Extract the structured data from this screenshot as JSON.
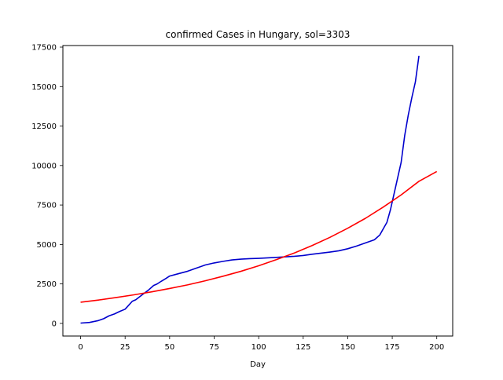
{
  "chart_data": {
    "type": "line",
    "title": "confirmed Cases in Hungary, sol=3303",
    "xlabel": "Day",
    "ylabel": "",
    "xlim": [
      -9.95,
      208.95
    ],
    "ylim": [
      -800,
      17600
    ],
    "x_ticks": [
      0,
      25,
      50,
      75,
      100,
      125,
      150,
      175,
      200
    ],
    "y_ticks": [
      0,
      2500,
      5000,
      7500,
      10000,
      12500,
      15000,
      17500
    ],
    "grid": false,
    "legend": "none",
    "series": [
      {
        "color": "#0000cd",
        "x": [
          0,
          5,
          10,
          13,
          16,
          19,
          22,
          25,
          27,
          29,
          31,
          35,
          38,
          41,
          43,
          45,
          48,
          50,
          55,
          60,
          65,
          70,
          75,
          80,
          85,
          90,
          95,
          100,
          110,
          120,
          125,
          130,
          135,
          140,
          145,
          150,
          155,
          160,
          165,
          168,
          170,
          172,
          174,
          176,
          178,
          180,
          182,
          184,
          186,
          188,
          190
        ],
        "y": [
          20,
          60,
          180,
          300,
          480,
          600,
          760,
          900,
          1150,
          1400,
          1500,
          1850,
          2100,
          2400,
          2500,
          2650,
          2850,
          3000,
          3150,
          3300,
          3500,
          3700,
          3830,
          3930,
          4020,
          4070,
          4100,
          4120,
          4180,
          4250,
          4300,
          4380,
          4450,
          4520,
          4600,
          4730,
          4900,
          5100,
          5300,
          5600,
          6000,
          6400,
          7200,
          8200,
          9200,
          10200,
          11900,
          13200,
          14300,
          15300,
          16950
        ]
      },
      {
        "color": "#ff0000",
        "x": [
          0,
          10,
          20,
          30,
          40,
          50,
          60,
          70,
          80,
          90,
          100,
          110,
          120,
          130,
          140,
          150,
          160,
          170,
          180,
          190,
          200
        ],
        "y": [
          1340,
          1480,
          1640,
          1810,
          2000,
          2210,
          2440,
          2700,
          2990,
          3300,
          3650,
          4040,
          4460,
          4930,
          5450,
          6030,
          6660,
          7370,
          8140,
          9000,
          9620
        ]
      }
    ]
  }
}
